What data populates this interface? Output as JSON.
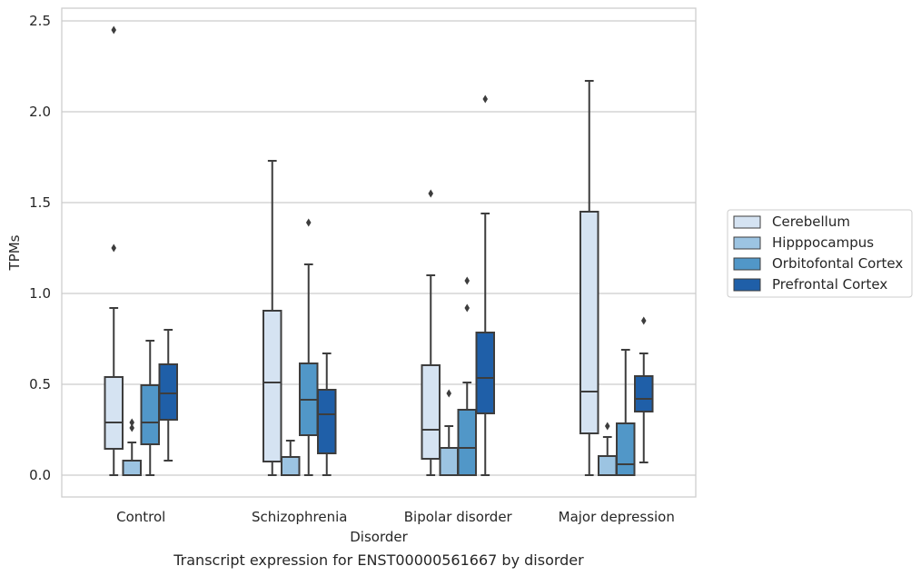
{
  "chart_data": {
    "type": "box",
    "title": "",
    "caption": "Transcript expression for ENST00000561667 by disorder",
    "xlabel": "Disorder",
    "ylabel": "TPMs",
    "ylim": [
      -0.12,
      2.57
    ],
    "yticks": [
      0.0,
      0.5,
      1.0,
      1.5,
      2.0,
      2.5
    ],
    "ytick_labels": [
      "0.0",
      "0.5",
      "1.0",
      "1.5",
      "2.0",
      "2.5"
    ],
    "grid": "horizontal",
    "legend_position": "right",
    "categories": [
      "Control",
      "Schizophrenia",
      "Bipolar disorder",
      "Major depression"
    ],
    "series": [
      {
        "name": "Cerebellum",
        "color": "#d5e3f2",
        "boxes": [
          {
            "whislo": 0.0,
            "q1": 0.145,
            "med": 0.29,
            "q3": 0.54,
            "whishi": 0.92,
            "fliers": [
              1.25,
              2.45
            ]
          },
          {
            "whislo": 0.0,
            "q1": 0.075,
            "med": 0.51,
            "q3": 0.905,
            "whishi": 1.73,
            "fliers": []
          },
          {
            "whislo": 0.0,
            "q1": 0.09,
            "med": 0.25,
            "q3": 0.605,
            "whishi": 1.1,
            "fliers": [
              1.55
            ]
          },
          {
            "whislo": 0.0,
            "q1": 0.23,
            "med": 0.46,
            "q3": 1.45,
            "whishi": 2.17,
            "fliers": []
          }
        ]
      },
      {
        "name": "Hipppocampus",
        "color": "#9cc4e2",
        "boxes": [
          {
            "whislo": 0.0,
            "q1": 0.0,
            "med": 0.0,
            "q3": 0.08,
            "whishi": 0.18,
            "fliers": [
              0.26,
              0.29
            ]
          },
          {
            "whislo": 0.0,
            "q1": 0.0,
            "med": 0.0,
            "q3": 0.1,
            "whishi": 0.19,
            "fliers": []
          },
          {
            "whislo": 0.0,
            "q1": 0.0,
            "med": 0.0,
            "q3": 0.15,
            "whishi": 0.27,
            "fliers": [
              0.45
            ]
          },
          {
            "whislo": 0.0,
            "q1": 0.0,
            "med": 0.0,
            "q3": 0.105,
            "whishi": 0.21,
            "fliers": [
              0.27
            ]
          }
        ]
      },
      {
        "name": "Orbitofontal Cortex",
        "color": "#5197c8",
        "boxes": [
          {
            "whislo": 0.0,
            "q1": 0.17,
            "med": 0.29,
            "q3": 0.495,
            "whishi": 0.74,
            "fliers": []
          },
          {
            "whislo": 0.0,
            "q1": 0.22,
            "med": 0.415,
            "q3": 0.615,
            "whishi": 1.16,
            "fliers": [
              1.39
            ]
          },
          {
            "whislo": 0.0,
            "q1": 0.0,
            "med": 0.15,
            "q3": 0.36,
            "whishi": 0.51,
            "fliers": [
              0.92,
              1.07
            ]
          },
          {
            "whislo": 0.0,
            "q1": 0.0,
            "med": 0.06,
            "q3": 0.285,
            "whishi": 0.69,
            "fliers": []
          }
        ]
      },
      {
        "name": "Prefrontal Cortex",
        "color": "#1f5fa8",
        "boxes": [
          {
            "whislo": 0.08,
            "q1": 0.305,
            "med": 0.45,
            "q3": 0.61,
            "whishi": 0.8,
            "fliers": []
          },
          {
            "whislo": 0.0,
            "q1": 0.12,
            "med": 0.335,
            "q3": 0.47,
            "whishi": 0.67,
            "fliers": []
          },
          {
            "whislo": 0.0,
            "q1": 0.34,
            "med": 0.535,
            "q3": 0.785,
            "whishi": 1.44,
            "fliers": [
              2.07
            ]
          },
          {
            "whislo": 0.07,
            "q1": 0.35,
            "med": 0.42,
            "q3": 0.545,
            "whishi": 0.67,
            "fliers": [
              0.85
            ]
          }
        ]
      }
    ]
  }
}
